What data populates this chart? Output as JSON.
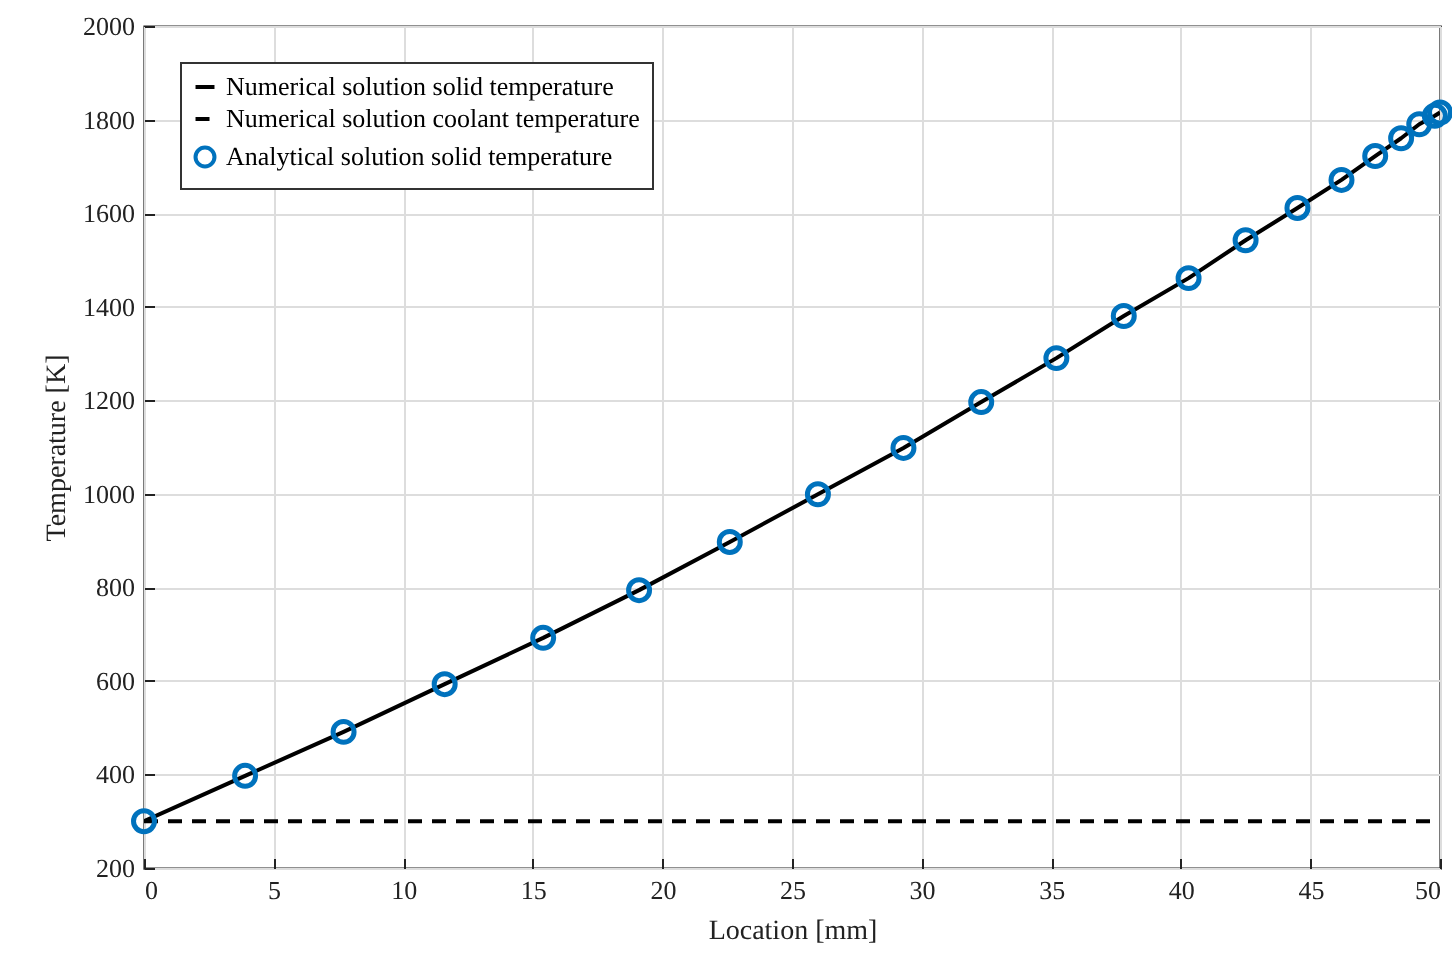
{
  "chart_data": {
    "type": "line",
    "xlabel": "Location [mm]",
    "ylabel": "Temperature [K]",
    "xlim": [
      0,
      50
    ],
    "xticks": [
      0,
      5,
      10,
      15,
      20,
      25,
      30,
      35,
      40,
      45,
      50
    ],
    "ylim": [
      200,
      2000
    ],
    "yticks": [
      200,
      400,
      600,
      800,
      1000,
      1200,
      1400,
      1600,
      1800,
      2000
    ],
    "grid": true,
    "legend": "top left",
    "series": [
      {
        "name": "Numerical solution solid temperature",
        "line_style": "solid",
        "color": "#000000",
        "x": [
          0,
          3.9,
          7.7,
          11.6,
          15.4,
          19.1,
          22.6,
          26.0,
          29.3,
          32.3,
          35.2,
          37.8,
          40.3,
          42.5,
          44.5,
          46.2,
          47.5,
          48.5,
          49.2,
          49.8,
          50
        ],
        "values": [
          300,
          397,
          491,
          593,
          692,
          794,
          897,
          999,
          1098,
          1196,
          1290,
          1380,
          1461,
          1542,
          1611,
          1671,
          1722,
          1760,
          1790,
          1808,
          1815
        ]
      },
      {
        "name": "Numerical solution coolant temperature",
        "line_style": "dashed",
        "color": "#000000",
        "x": [
          0,
          50
        ],
        "values": [
          300,
          300
        ]
      },
      {
        "name": "Analytical solution solid temperature",
        "type": "scatter",
        "marker": "circle",
        "color": "#0072bd",
        "x": [
          0,
          3.9,
          7.7,
          11.6,
          15.4,
          19.1,
          22.6,
          26.0,
          29.3,
          32.3,
          35.2,
          37.8,
          40.3,
          42.5,
          44.5,
          46.2,
          47.5,
          48.5,
          49.2,
          49.8,
          50
        ],
        "values": [
          300,
          397,
          491,
          593,
          692,
          794,
          897,
          999,
          1098,
          1196,
          1290,
          1380,
          1461,
          1542,
          1611,
          1671,
          1722,
          1760,
          1790,
          1808,
          1815
        ]
      }
    ]
  }
}
